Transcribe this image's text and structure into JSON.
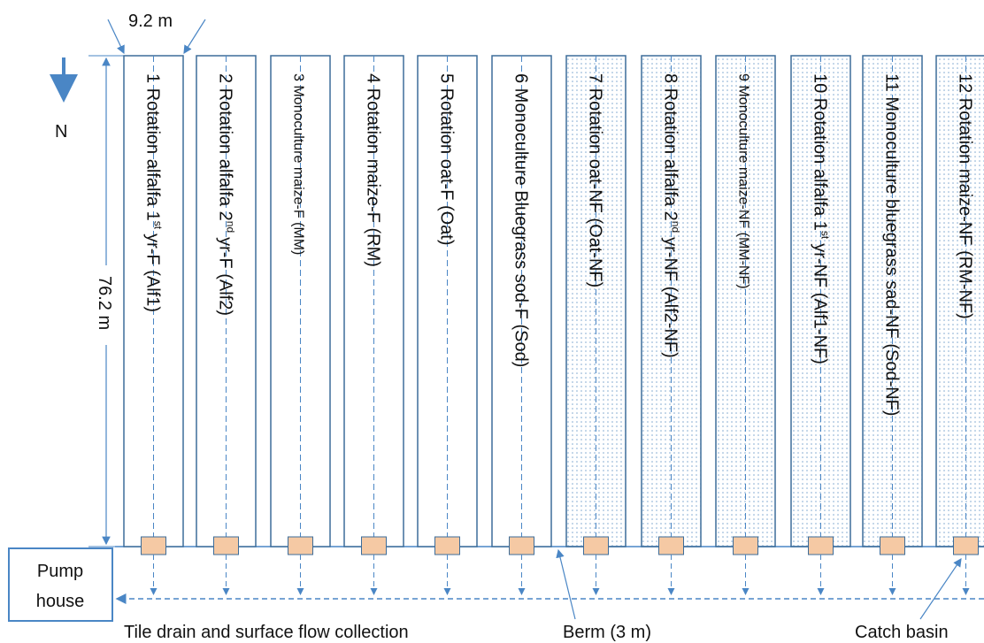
{
  "width_label": "9.2 m",
  "length_label": "76.2 m",
  "north_label": "N",
  "pump_house": "Pump\nhouse",
  "plots": [
    {
      "label": "1 Rotation alfalfa 1",
      "sup": "st",
      "label_end": "yr-F (Alf1)",
      "fertilized": true
    },
    {
      "label": "2 Rotation alfalfa 2",
      "sup": "nd",
      "label_end": "yr-F (Alf2)",
      "fertilized": true
    },
    {
      "label": "3 Monoculture maize-F (MM)",
      "fertilized": true
    },
    {
      "label": "4 Rotation maize-F (RM)",
      "fertilized": true
    },
    {
      "label": "5 Rotation oat-F (Oat)",
      "fertilized": true
    },
    {
      "label": "6 Monoculture Bluegrass sod-F (Sod)",
      "fertilized": true
    },
    {
      "label": "7 Rotation oat-NF (Oat-NF)",
      "fertilized": false
    },
    {
      "label": "8 Rotation alfalfa 2",
      "sup": "nd",
      "label_end": "yr-NF (Alf2-NF)",
      "fertilized": false
    },
    {
      "label": "9 Monoculture maize-NF (MM-NF)",
      "fertilized": false
    },
    {
      "label": "10 Rotation alfalfa 1",
      "sup": "st",
      "label_end": "yr-NF (Alf1-NF)",
      "fertilized": false
    },
    {
      "label": "11 Monoculture bluegrass sad-NF (Sod-NF)",
      "fertilized": false
    },
    {
      "label": "12 Rotation maize-NF (RM-NF)",
      "fertilized": false
    }
  ],
  "collection_label": "Tile drain and surface flow collection",
  "berm_label": "Berm (3 m)",
  "catch_basin_label": "Catch basin"
}
